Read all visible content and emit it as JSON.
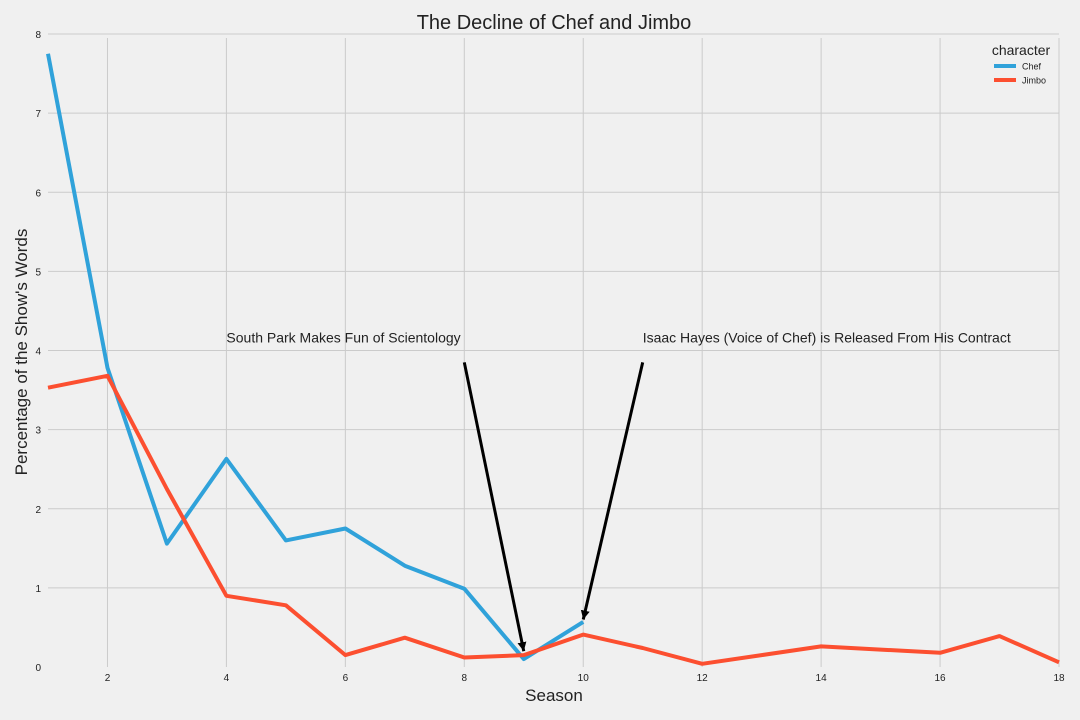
{
  "chart_data": {
    "type": "line",
    "title": "The Decline of Chef and Jimbo",
    "xlabel": "Season",
    "ylabel": "Percentage of the Show's Words",
    "xlim": [
      1,
      18
    ],
    "ylim": [
      0,
      8
    ],
    "xticks": [
      2,
      4,
      6,
      8,
      10,
      12,
      14,
      16,
      18
    ],
    "yticks": [
      0,
      1,
      2,
      3,
      4,
      5,
      6,
      7,
      8
    ],
    "grid": true,
    "legend": {
      "title": "character",
      "placement": "top-right"
    },
    "series": [
      {
        "name": "Chef",
        "color": "#30a2da",
        "x": [
          1,
          2,
          3,
          4,
          5,
          6,
          7,
          8,
          9,
          10
        ],
        "y": [
          7.75,
          3.78,
          1.56,
          2.63,
          1.6,
          1.75,
          1.28,
          0.99,
          0.1,
          0.57
        ]
      },
      {
        "name": "Jimbo",
        "color": "#fc4f30",
        "x": [
          1,
          2,
          3,
          4,
          5,
          6,
          7,
          8,
          9,
          10,
          11,
          12,
          13,
          14,
          15,
          16,
          17,
          18
        ],
        "y": [
          3.53,
          3.68,
          2.25,
          0.9,
          0.78,
          0.15,
          0.37,
          0.12,
          0.15,
          0.41,
          0.24,
          0.04,
          0.15,
          0.26,
          0.22,
          0.18,
          0.39,
          0.06
        ]
      }
    ],
    "annotations": [
      {
        "text": "South Park Makes Fun of Scientology",
        "text_x": 4,
        "text_y": 4.1,
        "arrow_from": [
          8,
          3.85
        ],
        "arrow_to": [
          9,
          0.2
        ]
      },
      {
        "text": "Isaac Hayes (Voice of Chef) is Released From His Contract",
        "text_x": 11,
        "text_y": 4.1,
        "arrow_from": [
          11,
          3.85
        ],
        "arrow_to": [
          10,
          0.6
        ]
      }
    ]
  }
}
